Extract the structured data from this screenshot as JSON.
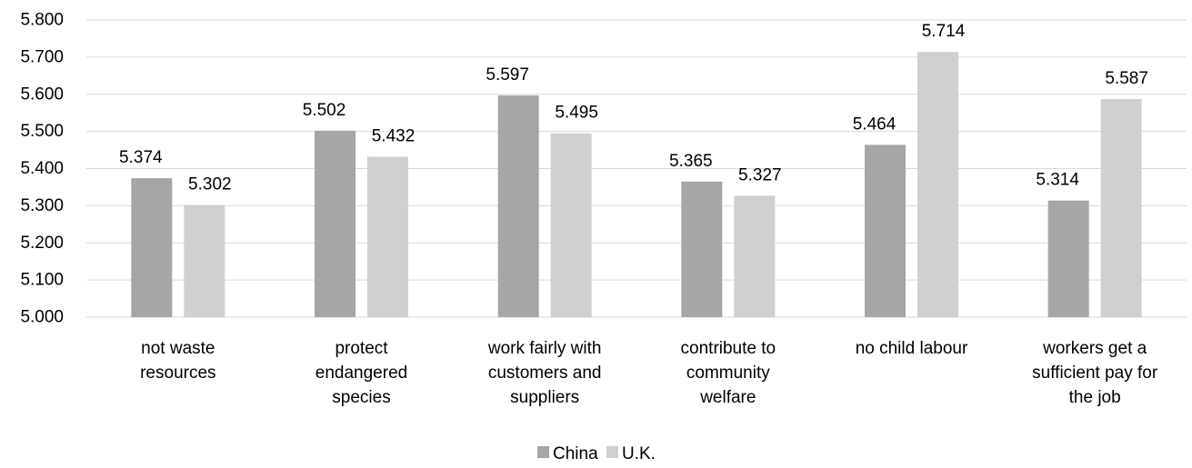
{
  "chart_data": {
    "type": "bar",
    "categories": [
      [
        "not waste",
        "resources"
      ],
      [
        "protect",
        "endangered",
        "species"
      ],
      [
        "work fairly with",
        "customers and",
        "suppliers"
      ],
      [
        "contribute to",
        "community",
        "welfare"
      ],
      [
        "no child labour"
      ],
      [
        "workers get a",
        "sufficient pay for",
        "the job"
      ]
    ],
    "series": [
      {
        "name": "China",
        "color": "#a6a6a6",
        "values": [
          5.374,
          5.502,
          5.597,
          5.365,
          5.464,
          5.314
        ]
      },
      {
        "name": "U.K.",
        "color": "#d0d0d0",
        "values": [
          5.302,
          5.432,
          5.495,
          5.327,
          5.714,
          5.587
        ]
      }
    ],
    "ylim": [
      5.0,
      5.8
    ],
    "yticks": [
      "5.000",
      "5.100",
      "5.200",
      "5.300",
      "5.400",
      "5.500",
      "5.600",
      "5.700",
      "5.800"
    ],
    "grid": true,
    "legend_position": "bottom-center"
  }
}
